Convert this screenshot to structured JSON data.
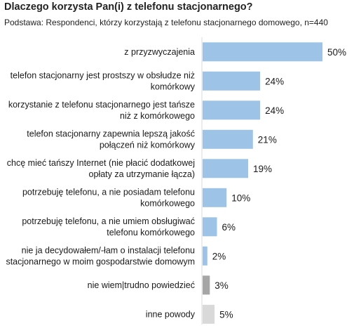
{
  "chart_data": {
    "type": "bar",
    "orientation": "horizontal",
    "title": "Dlaczego korzysta Pan(i) z telefonu stacjonarnego?",
    "subtitle": "Podstawa: Respondenci, którzy korzystają z telefonu stacjonarnego domowego, n=440",
    "categories": [
      [
        "z przyzwyczajenia"
      ],
      [
        "telefon stacjonarny jest prostszy w obsłudze niż",
        "komórkowy"
      ],
      [
        "korzystanie z telefonu stacjonarnego jest tańsze",
        "niż z komórkowego"
      ],
      [
        "telefon stacjonarny zapewnia lepszą jakość",
        "połączeń niż komórkowy"
      ],
      [
        "chcę mieć tańszy Internet (nie płacić dodatkowej",
        "opłaty za utrzymanie łącza)"
      ],
      [
        "potrzebuję telefonu, a nie posiadam telefonu",
        "komórkowego"
      ],
      [
        "potrzebuję telefonu, a nie umiem obsługiwać",
        "telefonu komórkowego"
      ],
      [
        "nie ja decydowałem/-łam o instalacji telefonu",
        "stacjonarnego w moim gospodarstwie domowym"
      ],
      [
        "nie wiem|trudno powiedzieć"
      ],
      [
        "inne powody"
      ]
    ],
    "values": [
      50,
      24,
      24,
      21,
      19,
      10,
      6,
      2,
      3,
      5
    ],
    "value_labels": [
      "50%",
      "24%",
      "24%",
      "21%",
      "19%",
      "10%",
      "6%",
      "2%",
      "3%",
      "5%"
    ],
    "colors": [
      "#9dc3e6",
      "#9dc3e6",
      "#9dc3e6",
      "#9dc3e6",
      "#9dc3e6",
      "#9dc3e6",
      "#9dc3e6",
      "#9dc3e6",
      "#a6a6a6",
      "#d9d9d9"
    ],
    "xlim": [
      0,
      50
    ],
    "grid": false,
    "legend": "none"
  }
}
